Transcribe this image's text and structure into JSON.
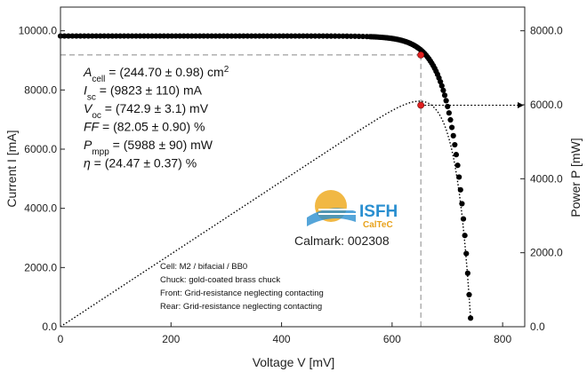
{
  "chart_data": {
    "type": "scatter",
    "xlabel": "Voltage V [mV]",
    "ylabel_left": "Current I [mA]",
    "ylabel_right": "Power P [mW]",
    "xlim": [
      0,
      840
    ],
    "ylim_left": [
      0,
      10800
    ],
    "ylim_right": [
      0,
      8640
    ],
    "x_ticks": [
      "0",
      "200",
      "400",
      "600",
      "800"
    ],
    "y_left_ticks": [
      "0.0",
      "2000.0",
      "4000.0",
      "6000.0",
      "8000.0",
      "10000.0"
    ],
    "y_right_ticks": [
      "0.0",
      "2000.0",
      "4000.0",
      "6000.0",
      "8000.0"
    ],
    "series": [
      {
        "kind": "IV-curve",
        "isc": 9823,
        "voc": 742.9,
        "style": "black dots"
      },
      {
        "kind": "PV-curve",
        "style": "dotted line"
      }
    ],
    "mpp": {
      "voltage_mV": 652,
      "current_mA": 9184,
      "power_mW": 5988
    },
    "marker_color": "#e02020",
    "parameters": [
      {
        "sym": "A",
        "sub": "cell",
        "rest": " = (244.70 ± 0.98) cm",
        "sup": "2"
      },
      {
        "sym": "I",
        "sub": "sc",
        "rest": " = (9823 ± 110) mA",
        "sup": ""
      },
      {
        "sym": "V",
        "sub": "oc",
        "rest": " = (742.9 ± 3.1) mV",
        "sup": ""
      },
      {
        "sym": "FF",
        "sub": "",
        "rest": " = (82.05 ± 0.90) %",
        "sup": ""
      },
      {
        "sym": "P",
        "sub": "mpp",
        "rest": " = (5988 ± 90) mW",
        "sup": ""
      },
      {
        "sym": "η",
        "sub": "",
        "rest": " = (24.47 ± 0.37) %",
        "sup": ""
      }
    ],
    "notes": [
      "Cell: M2 / bifacial / BB0",
      "Chuck: gold-coated brass chuck",
      "Front: Grid-resistance neglecting contacting",
      "Rear: Grid-resistance neglecting contacting"
    ],
    "logo": {
      "big": "ISFH",
      "small": "CalTeC"
    },
    "calmark": "Calmark: 002308"
  }
}
